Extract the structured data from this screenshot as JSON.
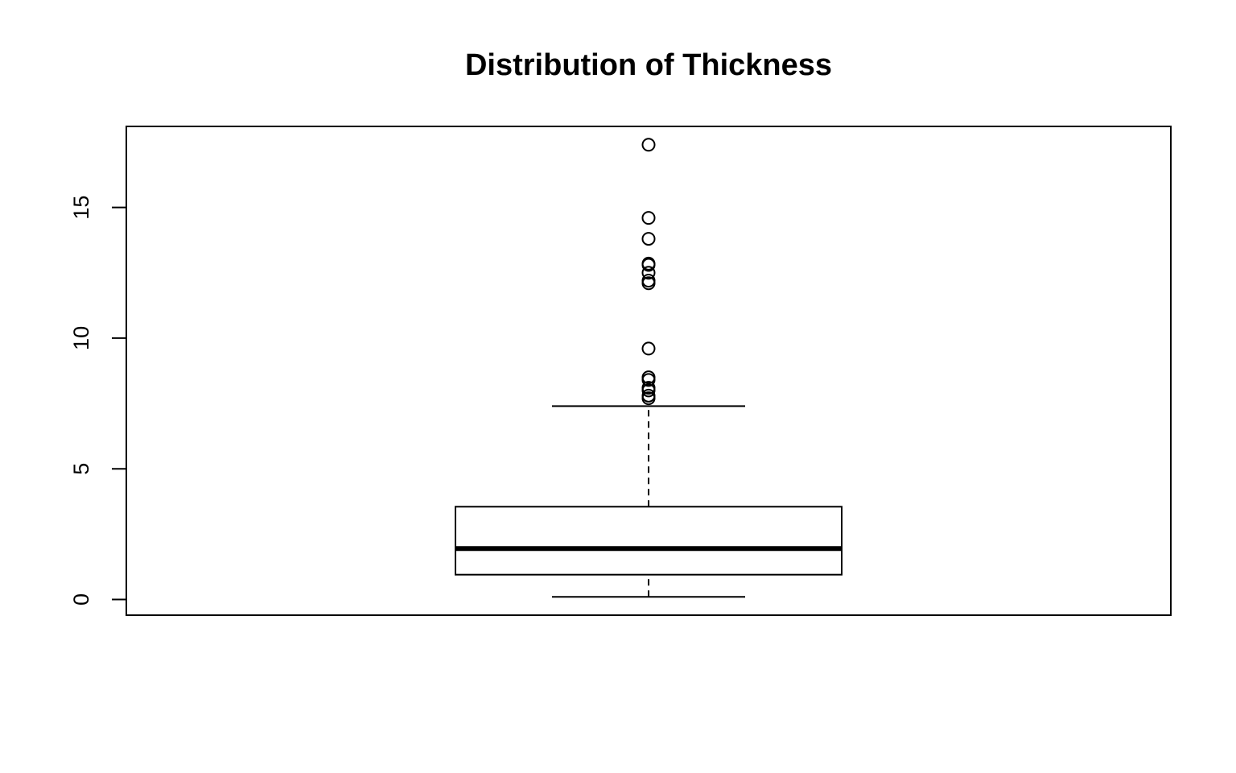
{
  "chart_data": {
    "type": "box",
    "title": "Distribution of Thickness",
    "xlabel": "",
    "ylabel": "",
    "ylim": [
      -0.6,
      18.1
    ],
    "yticks": [
      0,
      5,
      10,
      15
    ],
    "ytick_labels": [
      "0",
      "5",
      "10",
      "15"
    ],
    "grid": false,
    "series": [
      {
        "whisker_low": 0.1,
        "q1": 0.95,
        "median": 1.95,
        "q3": 3.55,
        "whisker_high": 7.4,
        "outliers": [
          7.7,
          7.8,
          8.0,
          8.1,
          8.4,
          8.5,
          9.6,
          12.1,
          12.2,
          12.5,
          12.8,
          12.85,
          13.8,
          14.6,
          17.4
        ]
      }
    ],
    "colors": {
      "stroke": "#000000",
      "background": "#ffffff"
    }
  }
}
